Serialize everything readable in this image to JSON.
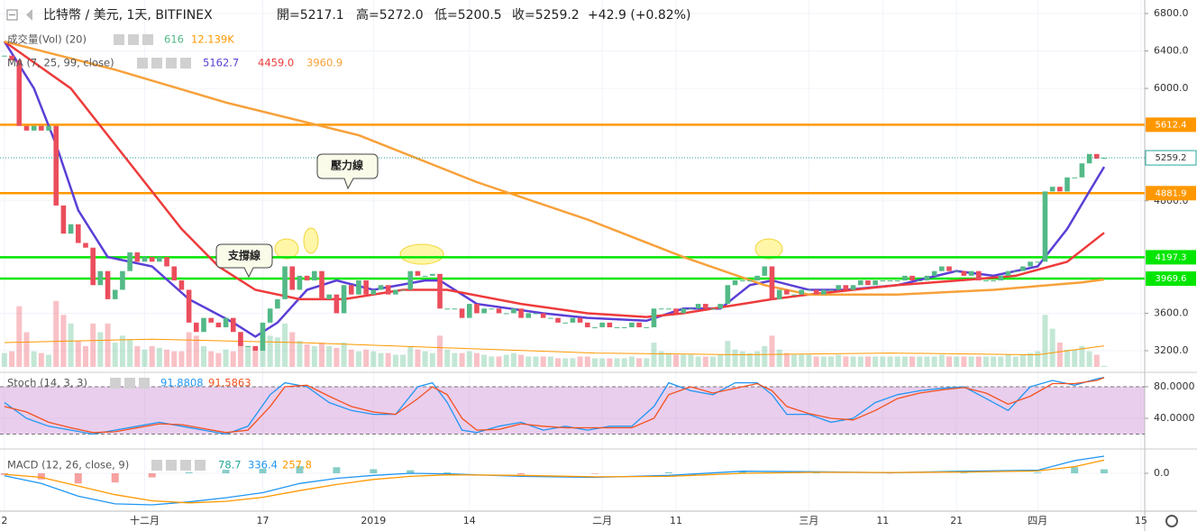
{
  "chart_data": [
    {
      "type": "candlestick",
      "symbol": "比特幣 / 美元, 1天, BITFINEX",
      "ohlc_labels": [
        "開=5217.1",
        "高=5272.0",
        "低=5200.5",
        "收=5259.2",
        "+42.9 (+0.82%)"
      ],
      "annotations": [
        "壓力線",
        "支撐線"
      ],
      "xlim": [
        -0.6,
        154.5
      ],
      "xticks": [
        {
          "value": 0,
          "label": "2"
        },
        {
          "value": 19,
          "label": "十二月"
        },
        {
          "value": 35,
          "label": "17"
        },
        {
          "value": 50,
          "label": "2019"
        },
        {
          "value": 63,
          "label": "14"
        },
        {
          "value": 81,
          "label": "二月"
        },
        {
          "value": 91,
          "label": "11"
        },
        {
          "value": 109,
          "label": "三月"
        },
        {
          "value": 119,
          "label": "11"
        },
        {
          "value": 129,
          "label": "21"
        },
        {
          "value": 140,
          "label": "四月"
        },
        {
          "value": 154,
          "label": "15"
        }
      ],
      "ylim": [
        2998,
        6944
      ],
      "yticks": [
        {
          "value": 6800,
          "label": "6800.0"
        },
        {
          "value": 6400,
          "label": "6400.0"
        },
        {
          "value": 6000,
          "label": "6000.0"
        },
        {
          "value": 4800,
          "label": "4800.0"
        },
        {
          "value": 3600,
          "label": "3600.0"
        },
        {
          "value": 3200,
          "label": "3200.0"
        }
      ],
      "up_color": "#53b987",
      "down_color": "#eb4d5c",
      "close": [
        6350,
        6300,
        5600,
        5550,
        5600,
        5550,
        5600,
        4750,
        4450,
        4550,
        4350,
        4300,
        3900,
        4050,
        3750,
        3850,
        4050,
        4250,
        4150,
        4200,
        4150,
        4200,
        4100,
        3950,
        3850,
        3500,
        3400,
        3550,
        3500,
        3450,
        3550,
        3400,
        3250,
        3250,
        3200,
        3500,
        3650,
        3750,
        4100,
        3850,
        4000,
        3950,
        4050,
        3750,
        3800,
        3600,
        3900,
        3800,
        3950,
        3800,
        3850,
        3900,
        3800,
        3850,
        3850,
        4050,
        4000,
        4000,
        4020,
        3650,
        3650,
        3650,
        3550,
        3700,
        3600,
        3650,
        3650,
        3600,
        3600,
        3650,
        3550,
        3600,
        3600,
        3550,
        3550,
        3500,
        3500,
        3550,
        3500,
        3450,
        3450,
        3500,
        3450,
        3450,
        3450,
        3500,
        3450,
        3450,
        3650,
        3650,
        3650,
        3600,
        3650,
        3650,
        3700,
        3650,
        3650,
        3700,
        3900,
        3950,
        3950,
        3950,
        4000,
        4100,
        3750,
        3850,
        3800,
        3800,
        3850,
        3850,
        3800,
        3850,
        3850,
        3900,
        3850,
        3900,
        3950,
        3900,
        3950,
        3950,
        3950,
        3950,
        4000,
        3950,
        3950,
        4000,
        4050,
        4100,
        4050,
        4050,
        4000,
        4050,
        3950,
        3950,
        3950,
        4000,
        4050,
        4050,
        4100,
        4150,
        4150,
        4900,
        4950,
        4900,
        5050,
        5050,
        5200,
        5300,
        5250,
        5259.2
      ],
      "volume": {
        "name": "成交量(Vol) (20)",
        "legend_values": [
          "616",
          "12.139K"
        ],
        "ylim": [
          0,
          40000
        ],
        "ma_color": "#ff9800",
        "values": [
          8000,
          9000,
          35000,
          20000,
          9000,
          8000,
          7000,
          38000,
          30000,
          25000,
          15000,
          12000,
          25000,
          20000,
          25000,
          14000,
          18000,
          16000,
          12000,
          10000,
          12000,
          11000,
          10000,
          9000,
          9000,
          20000,
          18000,
          12000,
          9000,
          8000,
          10000,
          9000,
          15000,
          12000,
          11000,
          22000,
          18000,
          17000,
          25000,
          20000,
          15000,
          13000,
          12000,
          14000,
          12000,
          11000,
          14000,
          10000,
          9000,
          10000,
          9000,
          8000,
          8000,
          7000,
          7000,
          12000,
          10000,
          9000,
          8000,
          18000,
          10000,
          8000,
          8000,
          9000,
          8000,
          7000,
          6000,
          6000,
          7000,
          8000,
          7000,
          6000,
          6000,
          6000,
          6000,
          5000,
          5000,
          5000,
          6000,
          6000,
          5000,
          5000,
          5000,
          5000,
          5000,
          6000,
          5000,
          5000,
          14000,
          9000,
          8000,
          7000,
          7000,
          7000,
          6000,
          6000,
          6000,
          7000,
          15000,
          10000,
          9000,
          8000,
          9000,
          12000,
          18000,
          10000,
          8000,
          7000,
          7000,
          7000,
          6000,
          6000,
          6000,
          7000,
          6000,
          6000,
          6000,
          6000,
          6000,
          6000,
          6000,
          6000,
          6000,
          6000,
          6000,
          6000,
          6000,
          7000,
          6000,
          6000,
          6000,
          6000,
          6000,
          6000,
          6000,
          6000,
          7000,
          6000,
          7000,
          8000,
          9000,
          30000,
          22000,
          14000,
          10000,
          10000,
          12000,
          9000,
          7000,
          616
        ],
        "ma_x": [
          0,
          20,
          40,
          60,
          80,
          100,
          120,
          140,
          149
        ],
        "ma_values": [
          14000,
          16000,
          14000,
          11000,
          8000,
          7000,
          8000,
          7000,
          12139
        ]
      },
      "ma": {
        "name": "MA (7, 25, 99, close)",
        "legend_values": [
          "5162.7",
          "4459.0",
          "3960.9"
        ],
        "series": [
          {
            "color": "#5b3fd6",
            "x": [
              0,
              4,
              7,
              10,
              14,
              20,
              25,
              31,
              34,
              37,
              41,
              45,
              50,
              57,
              59,
              64,
              73,
              79,
              87,
              92,
              97,
              101,
              104,
              109,
              114,
              121,
              129,
              134,
              140,
              144,
              147,
              149
            ],
            "values": [
              6500,
              6000,
              5400,
              4700,
              4200,
              4100,
              3750,
              3500,
              3350,
              3500,
              3850,
              3950,
              3850,
              3950,
              3950,
              3700,
              3600,
              3550,
              3520,
              3650,
              3650,
              3900,
              3950,
              3850,
              3850,
              3900,
              4050,
              4000,
              4100,
              4500,
              4900,
              5162.7
            ]
          },
          {
            "color": "#ee3b3b",
            "x": [
              0,
              9,
              19,
              24,
              29,
              34,
              40,
              46,
              54,
              60,
              70,
              79,
              87,
              92,
              100,
              104,
              109,
              121,
              131,
              137,
              144,
              149
            ],
            "values": [
              6500,
              6000,
              5000,
              4500,
              4100,
              3850,
              3750,
              3750,
              3850,
              3850,
              3700,
              3600,
              3560,
              3600,
              3700,
              3750,
              3800,
              3900,
              3960,
              4000,
              4150,
              4459.0
            ]
          },
          {
            "color": "#f7a13a",
            "x": [
              0,
              15,
              30,
              48,
              64,
              79,
              92,
              103,
              109,
              121,
              134,
              146,
              149
            ],
            "values": [
              6500,
              6200,
              5850,
              5500,
              5000,
              4600,
              4200,
              3900,
              3800,
              3800,
              3850,
              3930,
              3960.9
            ]
          }
        ]
      },
      "levels": [
        {
          "value": 5612.4,
          "color": "#ff9800"
        },
        {
          "value": 4881.9,
          "color": "#ff9800"
        },
        {
          "value": 4197.3,
          "color": "#00e600"
        },
        {
          "value": 3969.6,
          "color": "#00e600"
        }
      ]
    },
    {
      "type": "line",
      "name": "Stoch (14, 3, 3)",
      "legend_values": [
        "91.8808",
        "91.5863"
      ],
      "ylim": [
        2.3,
        92.6
      ],
      "yticks": [
        {
          "value": 80,
          "label": "80.0000"
        },
        {
          "value": 40,
          "label": "40.0000"
        }
      ],
      "band": [
        20,
        80
      ],
      "series": [
        {
          "color": "#2196f3",
          "x": [
            0,
            3,
            6,
            9,
            12,
            15,
            18,
            21,
            24,
            27,
            30,
            33,
            36,
            38,
            41,
            44,
            47,
            50,
            53,
            56,
            58,
            60,
            62,
            64,
            67,
            70,
            73,
            76,
            79,
            82,
            85,
            88,
            90,
            93,
            96,
            99,
            102,
            104,
            106,
            109,
            112,
            115,
            118,
            121,
            124,
            127,
            130,
            133,
            136,
            139,
            142,
            145,
            148,
            149
          ],
          "values": [
            60,
            40,
            30,
            25,
            20,
            25,
            30,
            35,
            30,
            25,
            20,
            30,
            70,
            85,
            80,
            60,
            50,
            45,
            45,
            80,
            85,
            60,
            25,
            22,
            30,
            35,
            25,
            30,
            25,
            30,
            30,
            55,
            85,
            75,
            70,
            85,
            85,
            70,
            45,
            45,
            35,
            40,
            60,
            70,
            75,
            78,
            80,
            65,
            50,
            80,
            88,
            82,
            90,
            91.8808
          ]
        },
        {
          "color": "#f4511e",
          "x": [
            0,
            3,
            6,
            9,
            12,
            15,
            18,
            21,
            24,
            27,
            30,
            33,
            36,
            38,
            41,
            44,
            47,
            50,
            53,
            56,
            58,
            60,
            62,
            64,
            67,
            70,
            73,
            76,
            79,
            82,
            85,
            88,
            90,
            93,
            96,
            99,
            102,
            104,
            106,
            109,
            112,
            115,
            118,
            121,
            124,
            127,
            130,
            133,
            136,
            139,
            142,
            145,
            148,
            149
          ],
          "values": [
            55,
            48,
            35,
            28,
            22,
            23,
            28,
            33,
            32,
            27,
            22,
            25,
            55,
            80,
            82,
            68,
            55,
            48,
            45,
            65,
            80,
            70,
            40,
            25,
            26,
            33,
            30,
            28,
            28,
            28,
            28,
            40,
            70,
            80,
            72,
            78,
            84,
            75,
            55,
            46,
            40,
            38,
            50,
            65,
            72,
            76,
            79,
            72,
            58,
            68,
            84,
            84,
            88,
            91.5863
          ]
        }
      ]
    },
    {
      "type": "line",
      "name": "MACD (12, 26, close, 9)",
      "legend_values": [
        "78.7",
        "336.4",
        "257.8"
      ],
      "ylim": [
        -743,
        442
      ],
      "yticks": [
        {
          "value": 0,
          "label": "0.0"
        }
      ],
      "histogram": {
        "up_color": "#26a69a",
        "down_color": "#ef5350",
        "x": [
          0,
          5,
          10,
          15,
          20,
          25,
          30,
          35,
          40,
          45,
          50,
          55,
          60,
          70,
          80,
          90,
          100,
          110,
          120,
          130,
          140,
          145,
          149
        ],
        "values": [
          -30,
          -120,
          -200,
          -180,
          -80,
          20,
          70,
          90,
          140,
          120,
          80,
          60,
          20,
          -20,
          -10,
          20,
          40,
          10,
          -5,
          15,
          15,
          120,
          78.7
        ]
      },
      "series": [
        {
          "color": "#2196f3",
          "x": [
            0,
            5,
            10,
            15,
            20,
            25,
            30,
            35,
            40,
            45,
            50,
            55,
            60,
            70,
            80,
            90,
            100,
            110,
            120,
            130,
            140,
            145,
            149
          ],
          "values": [
            -50,
            -200,
            -450,
            -600,
            -620,
            -560,
            -480,
            -380,
            -200,
            -100,
            -40,
            0,
            -10,
            -60,
            -80,
            -40,
            40,
            30,
            10,
            40,
            60,
            250,
            336.4
          ]
        },
        {
          "color": "#ff9800",
          "x": [
            0,
            5,
            10,
            15,
            20,
            25,
            30,
            35,
            40,
            45,
            50,
            55,
            60,
            70,
            80,
            90,
            100,
            110,
            120,
            130,
            140,
            145,
            149
          ],
          "values": [
            -20,
            -80,
            -250,
            -420,
            -540,
            -580,
            -550,
            -470,
            -340,
            -220,
            -120,
            -60,
            -30,
            -40,
            -70,
            -60,
            0,
            20,
            15,
            25,
            45,
            130,
            257.8
          ]
        }
      ]
    }
  ]
}
